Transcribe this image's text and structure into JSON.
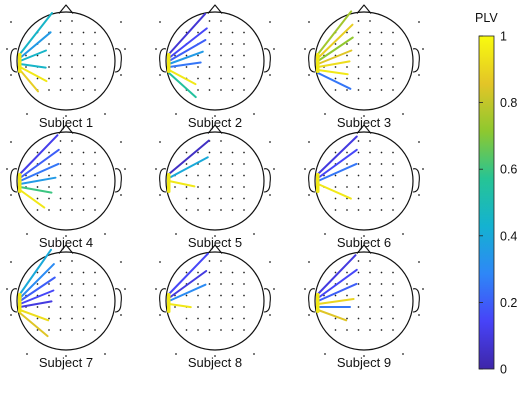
{
  "colorbar": {
    "title": "PLV",
    "ticks": [
      {
        "value": 1,
        "label": "1"
      },
      {
        "value": 0.8,
        "label": "0.8"
      },
      {
        "value": 0.6,
        "label": "0.6"
      },
      {
        "value": 0.4,
        "label": "0.4"
      },
      {
        "value": 0.2,
        "label": "0.2"
      },
      {
        "value": 0,
        "label": "0"
      }
    ],
    "colormap": [
      "#3e26a8",
      "#4743f8",
      "#2e87f7",
      "#14b2d1",
      "#26c495",
      "#8ec82f",
      "#e3c527",
      "#f9fb0e"
    ]
  },
  "subjects": [
    {
      "label": "Subject 1",
      "connections": [
        0.45,
        0.35,
        0.45,
        0.45,
        0.95,
        0.88
      ]
    },
    {
      "label": "Subject 2",
      "connections": [
        0.08,
        0.15,
        0.2,
        0.35,
        0.25,
        0.95,
        0.55
      ]
    },
    {
      "label": "Subject 3",
      "connections": [
        0.75,
        0.88,
        0.72,
        0.85,
        0.92,
        0.95,
        0.25
      ]
    },
    {
      "label": "Subject 4",
      "connections": [
        0.12,
        0.2,
        0.25,
        0.35,
        0.6,
        0.95
      ]
    },
    {
      "label": "Subject 5",
      "connections": [
        0.05,
        0.4,
        0.95
      ]
    },
    {
      "label": "Subject 6",
      "connections": [
        0.1,
        0.15,
        0.25,
        0.95
      ]
    },
    {
      "label": "Subject 7",
      "connections": [
        0.4,
        0.3,
        0.2,
        0.15,
        0.1,
        0.92,
        0.85
      ]
    },
    {
      "label": "Subject 8",
      "connections": [
        0.15,
        0.1,
        0.3,
        0.95
      ]
    },
    {
      "label": "Subject 9",
      "connections": [
        0.1,
        0.15,
        0.2,
        0.9,
        0.25,
        0.85
      ]
    }
  ]
}
